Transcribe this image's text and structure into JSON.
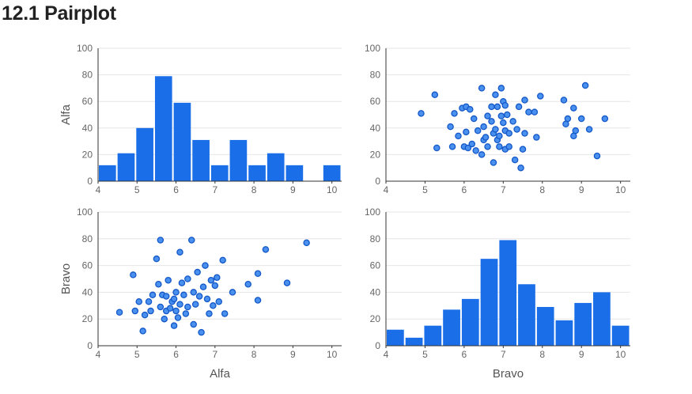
{
  "page": {
    "title": "12.1 Pairplot"
  },
  "colors": {
    "bar": "#1A6FE8",
    "point_fill": "#4A90EE",
    "point_stroke": "#1458C8",
    "grid": "#E6E6E6",
    "axis": "#333333"
  },
  "chart_data": [
    {
      "id": "alfa-hist",
      "type": "bar",
      "title": "",
      "xlabel": "",
      "ylabel": "Alfa",
      "xlim": [
        4,
        10.25
      ],
      "ylim": [
        0,
        100
      ],
      "xticks": [
        4,
        5,
        6,
        7,
        8,
        9,
        10
      ],
      "yticks": [
        0,
        20,
        40,
        60,
        80,
        100
      ],
      "bin_width": 0.48,
      "bin_starts": [
        4.0,
        4.48,
        4.96,
        5.44,
        5.92,
        6.4,
        6.88,
        7.36,
        7.84,
        8.32,
        8.8,
        9.28,
        9.76
      ],
      "values": [
        12,
        21,
        40,
        79,
        59,
        31,
        12,
        31,
        12,
        21,
        12,
        0,
        12
      ]
    },
    {
      "id": "alfa-vs-bravo",
      "type": "scatter",
      "title": "",
      "xlabel": "",
      "ylabel": "",
      "xlim": [
        4,
        10.25
      ],
      "ylim": [
        0,
        100
      ],
      "xticks": [
        4,
        5,
        6,
        7,
        8,
        9,
        10
      ],
      "yticks": [
        0,
        20,
        40,
        60,
        80,
        100
      ],
      "points": [
        [
          4.9,
          51
        ],
        [
          5.25,
          65
        ],
        [
          5.3,
          25
        ],
        [
          5.65,
          41
        ],
        [
          5.7,
          26
        ],
        [
          5.75,
          51
        ],
        [
          5.85,
          34
        ],
        [
          5.95,
          55
        ],
        [
          6.0,
          26
        ],
        [
          6.05,
          56
        ],
        [
          6.05,
          37
        ],
        [
          6.1,
          25
        ],
        [
          6.15,
          54
        ],
        [
          6.2,
          28
        ],
        [
          6.25,
          47
        ],
        [
          6.3,
          23
        ],
        [
          6.35,
          38
        ],
        [
          6.45,
          70
        ],
        [
          6.45,
          20
        ],
        [
          6.5,
          41
        ],
        [
          6.5,
          31
        ],
        [
          6.55,
          33
        ],
        [
          6.6,
          49
        ],
        [
          6.6,
          26
        ],
        [
          6.7,
          56
        ],
        [
          6.7,
          45
        ],
        [
          6.75,
          36
        ],
        [
          6.75,
          14
        ],
        [
          6.8,
          65
        ],
        [
          6.8,
          39
        ],
        [
          6.85,
          56
        ],
        [
          6.85,
          31
        ],
        [
          6.9,
          34
        ],
        [
          6.9,
          26
        ],
        [
          6.95,
          70
        ],
        [
          6.95,
          49
        ],
        [
          7.0,
          60
        ],
        [
          7.0,
          44
        ],
        [
          7.05,
          57
        ],
        [
          7.05,
          38
        ],
        [
          7.05,
          24
        ],
        [
          7.1,
          50
        ],
        [
          7.15,
          36
        ],
        [
          7.15,
          26
        ],
        [
          7.25,
          45
        ],
        [
          7.3,
          16
        ],
        [
          7.35,
          39
        ],
        [
          7.4,
          56
        ],
        [
          7.45,
          10
        ],
        [
          7.5,
          24
        ],
        [
          7.55,
          36
        ],
        [
          7.55,
          61
        ],
        [
          7.65,
          52
        ],
        [
          7.8,
          52
        ],
        [
          7.85,
          33
        ],
        [
          7.95,
          64
        ],
        [
          8.55,
          61
        ],
        [
          8.6,
          43
        ],
        [
          8.65,
          47
        ],
        [
          8.8,
          55
        ],
        [
          8.8,
          34
        ],
        [
          8.85,
          38
        ],
        [
          9.0,
          47
        ],
        [
          9.1,
          72
        ],
        [
          9.2,
          39
        ],
        [
          9.4,
          19
        ],
        [
          9.6,
          47
        ]
      ]
    },
    {
      "id": "bravo-vs-alfa",
      "type": "scatter",
      "title": "",
      "xlabel": "Alfa",
      "ylabel": "Bravo",
      "xlim": [
        4,
        10.25
      ],
      "ylim": [
        0,
        100
      ],
      "xticks": [
        4,
        5,
        6,
        7,
        8,
        9,
        10
      ],
      "yticks": [
        0,
        20,
        40,
        60,
        80,
        100
      ],
      "points": [
        [
          4.55,
          25
        ],
        [
          4.9,
          53
        ],
        [
          4.95,
          26
        ],
        [
          5.05,
          33
        ],
        [
          5.15,
          11
        ],
        [
          5.2,
          23
        ],
        [
          5.3,
          33
        ],
        [
          5.35,
          26
        ],
        [
          5.4,
          38
        ],
        [
          5.5,
          65
        ],
        [
          5.55,
          46
        ],
        [
          5.6,
          79
        ],
        [
          5.6,
          29
        ],
        [
          5.65,
          38
        ],
        [
          5.7,
          20
        ],
        [
          5.75,
          37
        ],
        [
          5.75,
          26
        ],
        [
          5.8,
          49
        ],
        [
          5.85,
          28
        ],
        [
          5.9,
          33
        ],
        [
          5.95,
          15
        ],
        [
          5.95,
          35
        ],
        [
          6.0,
          40
        ],
        [
          6.0,
          26
        ],
        [
          6.05,
          21
        ],
        [
          6.1,
          70
        ],
        [
          6.1,
          31
        ],
        [
          6.15,
          47
        ],
        [
          6.2,
          38
        ],
        [
          6.25,
          24
        ],
        [
          6.3,
          50
        ],
        [
          6.3,
          29
        ],
        [
          6.4,
          79
        ],
        [
          6.45,
          40
        ],
        [
          6.45,
          16
        ],
        [
          6.5,
          31
        ],
        [
          6.55,
          55
        ],
        [
          6.6,
          37
        ],
        [
          6.65,
          10
        ],
        [
          6.7,
          44
        ],
        [
          6.75,
          60
        ],
        [
          6.8,
          35
        ],
        [
          6.85,
          24
        ],
        [
          6.9,
          49
        ],
        [
          6.95,
          30
        ],
        [
          7.0,
          45
        ],
        [
          7.05,
          51
        ],
        [
          7.1,
          33
        ],
        [
          7.2,
          64
        ],
        [
          7.25,
          24
        ],
        [
          7.45,
          40
        ],
        [
          7.85,
          46
        ],
        [
          8.1,
          54
        ],
        [
          8.1,
          34
        ],
        [
          8.3,
          72
        ],
        [
          8.85,
          47
        ],
        [
          9.35,
          77
        ]
      ]
    },
    {
      "id": "bravo-hist",
      "type": "bar",
      "title": "",
      "xlabel": "Bravo",
      "ylabel": "",
      "xlim": [
        4,
        10.25
      ],
      "ylim": [
        0,
        100
      ],
      "xticks": [
        4,
        5,
        6,
        7,
        8,
        9,
        10
      ],
      "yticks": [
        0,
        20,
        40,
        60,
        80,
        100
      ],
      "bin_width": 0.48,
      "bin_starts": [
        4.0,
        4.48,
        4.96,
        5.44,
        5.92,
        6.4,
        6.88,
        7.36,
        7.84,
        8.32,
        8.8,
        9.28,
        9.76
      ],
      "values": [
        12,
        6,
        15,
        27,
        35,
        65,
        79,
        46,
        29,
        19,
        32,
        40,
        15
      ]
    }
  ]
}
